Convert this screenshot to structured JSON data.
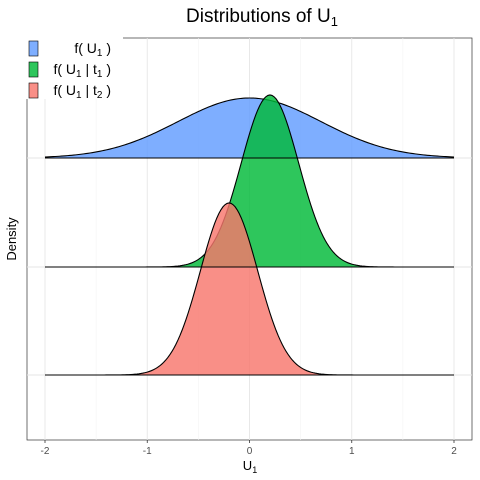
{
  "chart_data": {
    "type": "area",
    "title": {
      "main": "Distributions of U",
      "sub": "1"
    },
    "xlabel": {
      "main": "U",
      "sub": "1"
    },
    "ylabel": "Density",
    "xlim": [
      -2,
      2
    ],
    "xticks": [
      -2,
      -1,
      0,
      1,
      2
    ],
    "grid": true,
    "legend_position": "top-left",
    "series": [
      {
        "name": "f( U1 )",
        "legend": [
          {
            "t": "f( U",
            "s": false
          },
          {
            "t": "1",
            "s": true
          },
          {
            "t": " )",
            "s": false
          }
        ],
        "color": "#619CFF",
        "mean": 0.0,
        "sd": 0.7,
        "baseline_row": 2,
        "peak_height": 0.75
      },
      {
        "name": "f( U1 | t1 )",
        "legend": [
          {
            "t": "f( U",
            "s": false
          },
          {
            "t": "1",
            "s": true
          },
          {
            "t": " | t",
            "s": false
          },
          {
            "t": "1",
            "s": true
          },
          {
            "t": " )",
            "s": false
          }
        ],
        "color": "#00BA38",
        "mean": 0.2,
        "sd": 0.28,
        "baseline_row": 1,
        "peak_height": 2.15
      },
      {
        "name": "f( U1 | t2 )",
        "legend": [
          {
            "t": "f( U",
            "s": false
          },
          {
            "t": "1",
            "s": true
          },
          {
            "t": " | t",
            "s": false
          },
          {
            "t": "2",
            "s": true
          },
          {
            "t": " )",
            "s": false
          }
        ],
        "color": "#F8766D",
        "mean": -0.2,
        "sd": 0.28,
        "baseline_row": 0,
        "peak_height": 2.15
      }
    ]
  }
}
